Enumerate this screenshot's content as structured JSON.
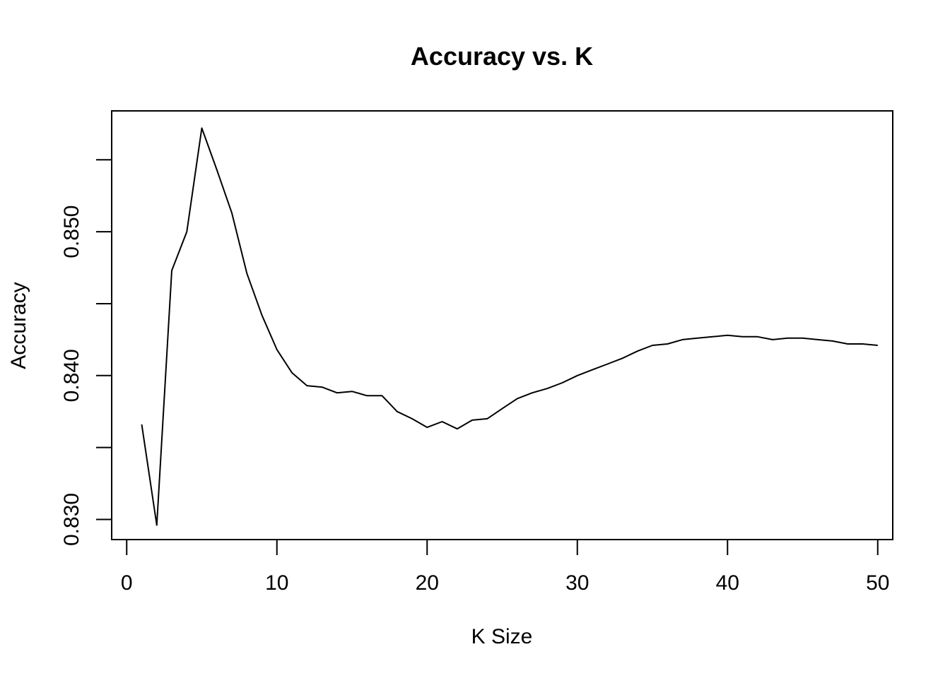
{
  "chart_data": {
    "type": "line",
    "title": "Accuracy vs. K",
    "xlabel": "K Size",
    "ylabel": "Accuracy",
    "xlim": [
      -1,
      51
    ],
    "ylim": [
      0.8286,
      0.8584
    ],
    "xticks": [
      0,
      10,
      20,
      30,
      40,
      50
    ],
    "yticks": [
      0.83,
      0.835,
      0.84,
      0.845,
      0.85,
      0.855
    ],
    "yticklabels": [
      "0.830",
      "",
      "0.840",
      "",
      "0.850",
      ""
    ],
    "grid": false,
    "legend": false,
    "series": [
      {
        "color": "#000000",
        "x": [
          1,
          2,
          3,
          4,
          5,
          6,
          7,
          8,
          9,
          10,
          11,
          12,
          13,
          14,
          15,
          16,
          17,
          18,
          19,
          20,
          21,
          22,
          23,
          24,
          25,
          26,
          27,
          28,
          29,
          30,
          31,
          32,
          33,
          34,
          35,
          36,
          37,
          38,
          39,
          40,
          41,
          42,
          43,
          44,
          45,
          46,
          47,
          48,
          49,
          50
        ],
        "values": [
          0.8366,
          0.8296,
          0.8473,
          0.85,
          0.8572,
          0.8543,
          0.8513,
          0.8471,
          0.8442,
          0.8418,
          0.8402,
          0.8393,
          0.8392,
          0.8388,
          0.8389,
          0.8386,
          0.8386,
          0.8375,
          0.837,
          0.8364,
          0.8368,
          0.8363,
          0.8369,
          0.837,
          0.8377,
          0.8384,
          0.8388,
          0.8391,
          0.8395,
          0.84,
          0.8404,
          0.8408,
          0.8412,
          0.8417,
          0.8421,
          0.8422,
          0.8425,
          0.8426,
          0.8427,
          0.8428,
          0.8427,
          0.8427,
          0.8425,
          0.8426,
          0.8426,
          0.8425,
          0.8424,
          0.8422,
          0.8422,
          0.8421
        ]
      }
    ]
  }
}
